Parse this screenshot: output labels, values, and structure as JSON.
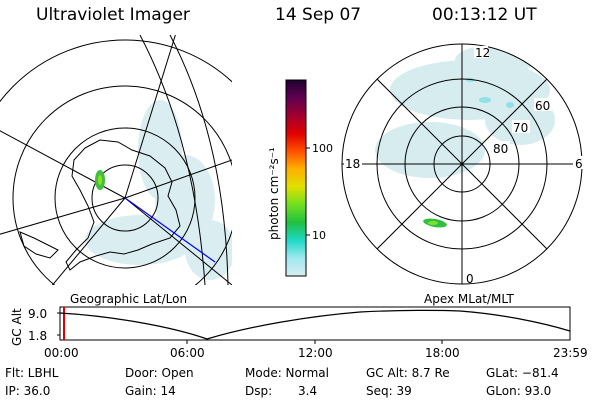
{
  "header": {
    "title": "Ultraviolet Imager",
    "date": "14 Sep 07",
    "time": "00:13:12 UT"
  },
  "left_map": {
    "label": "Geographic Lat/Lon"
  },
  "right_map": {
    "label": "Apex MLat/MLT",
    "mlt_labels": [
      "12",
      "18",
      "6",
      "0"
    ],
    "lat_labels": [
      "60",
      "70",
      "80"
    ]
  },
  "colorbar": {
    "unit_label": "photon cm⁻²s⁻¹",
    "ticks": [
      "100",
      "10"
    ],
    "colors": [
      "#d8eef0",
      "#a0e8f0",
      "#20d8c8",
      "#20c040",
      "#70e020",
      "#e0e000",
      "#ffb000",
      "#ff5000",
      "#e00000",
      "#a00030",
      "#600050",
      "#200030"
    ]
  },
  "altitude_plot": {
    "ylabel": "GC Alt",
    "yticks": [
      "9.0",
      "1.8"
    ],
    "xticks": [
      "00:00",
      "06:00",
      "12:00",
      "18:00",
      "23:59"
    ]
  },
  "info": {
    "filter": "Flt: LBHL",
    "door": "Door: Open",
    "mode": "Mode: Normal",
    "gc_alt": "GC Alt: 8.7 Re",
    "glat": "GLat: −81.4",
    "ip": "IP: 36.0",
    "gain": "Gain: 14",
    "dsp_label": "Dsp:",
    "dsp_value": "3.4",
    "seq": "Seq: 39",
    "glon": "GLon: 93.0"
  },
  "style": {
    "track_color": "#0000ff",
    "marker_color": "#e00000"
  }
}
